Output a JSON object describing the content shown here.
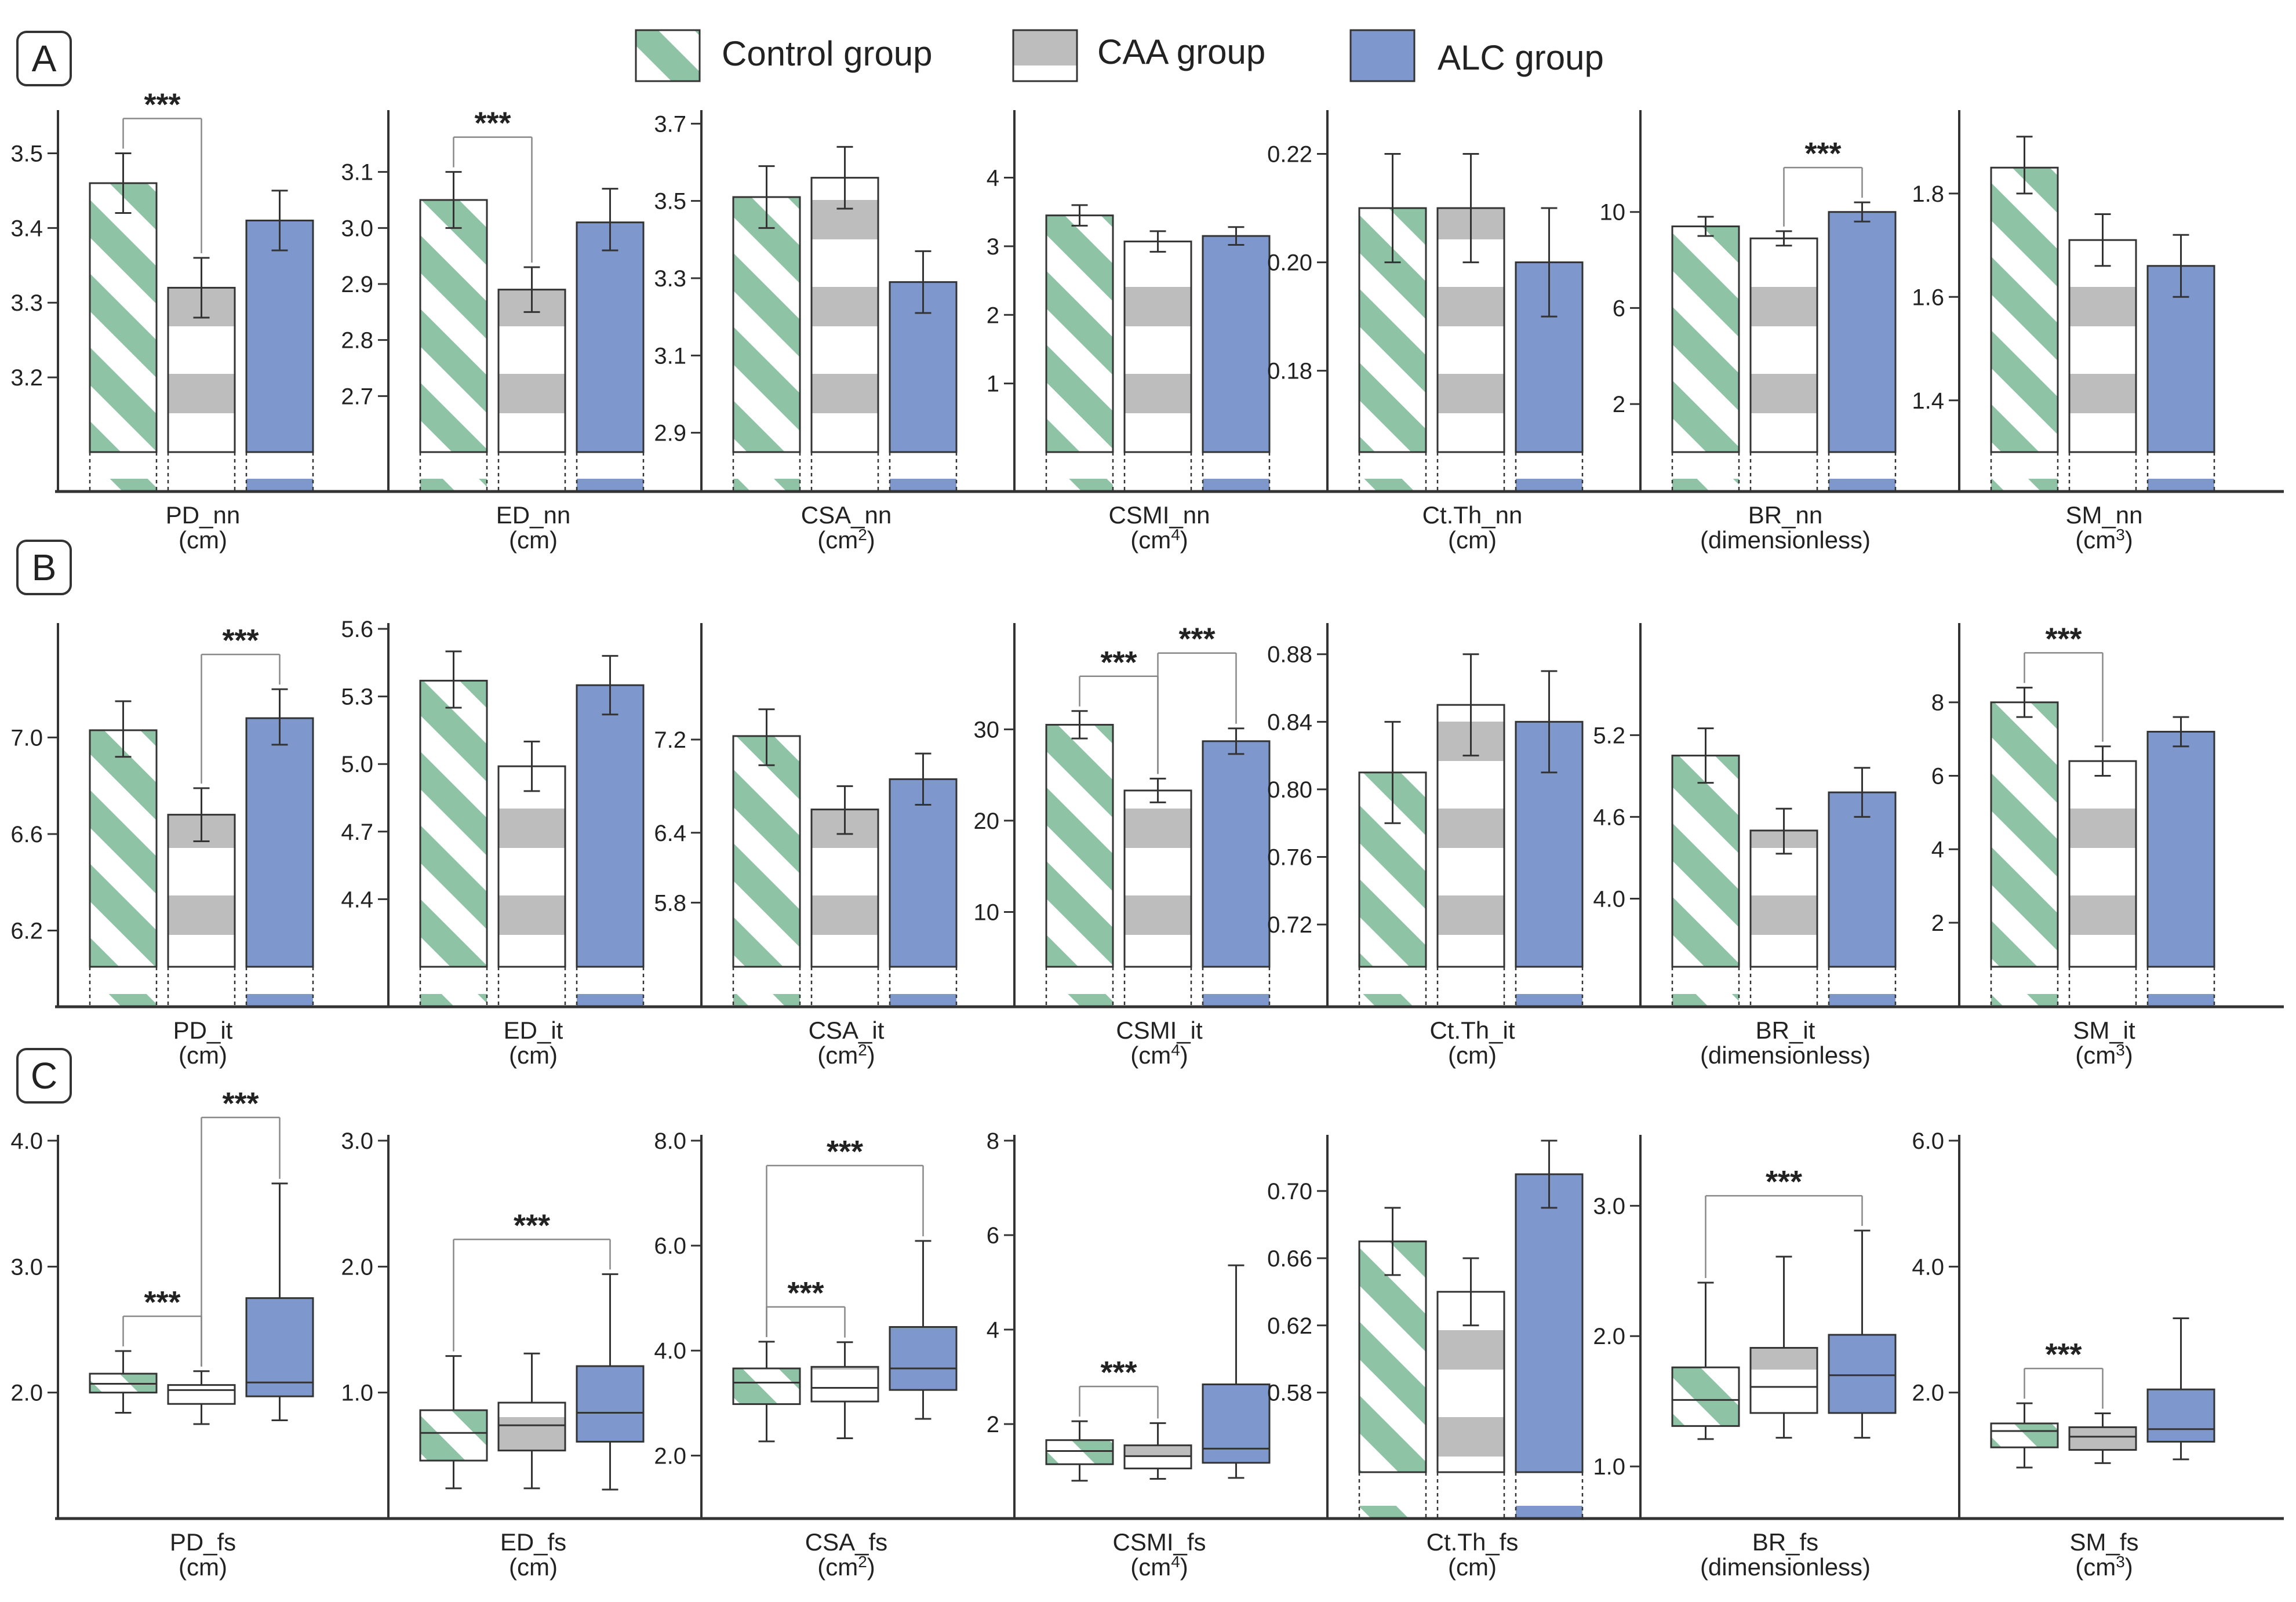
{
  "legend": {
    "items": [
      {
        "key": "control",
        "label": "Control group"
      },
      {
        "key": "caa",
        "label": "CAA group"
      },
      {
        "key": "alc",
        "label": "ALC group"
      }
    ]
  },
  "colors": {
    "control_stripe": "#8fc3a6",
    "caa_band": "#bdbdbd",
    "alc_fill": "#7e98cd",
    "axis": "#333333",
    "error": "#333333"
  },
  "panel_labels": [
    "A",
    "B",
    "C"
  ],
  "significance_marker": "***",
  "chart_data": [
    {
      "panel": "A",
      "type": "bar",
      "xlabel": "PD_nn",
      "unit": "(cm)",
      "ylim": [
        3.1,
        3.55
      ],
      "yticks": [
        "3.2",
        "3.3",
        "3.4",
        "3.5"
      ],
      "ytick_values": [
        3.2,
        3.3,
        3.4,
        3.5
      ],
      "groups": [
        "Control group",
        "CAA group",
        "ALC group"
      ],
      "values": [
        3.46,
        3.32,
        3.41
      ],
      "error_low": [
        3.42,
        3.28,
        3.37
      ],
      "error_high": [
        3.5,
        3.36,
        3.45
      ],
      "significance": [
        {
          "from": 0,
          "to": 1,
          "label": "***"
        }
      ]
    },
    {
      "panel": "A",
      "type": "bar",
      "xlabel": "ED_nn",
      "unit": "(cm)",
      "ylim": [
        2.6,
        3.2
      ],
      "yticks": [
        "2.7",
        "2.8",
        "2.9",
        "3.0",
        "3.1"
      ],
      "ytick_values": [
        2.7,
        2.8,
        2.9,
        3.0,
        3.1
      ],
      "groups": [
        "Control group",
        "CAA group",
        "ALC group"
      ],
      "values": [
        3.05,
        2.89,
        3.01
      ],
      "error_low": [
        3.0,
        2.85,
        2.96
      ],
      "error_high": [
        3.1,
        2.93,
        3.07
      ],
      "significance": [
        {
          "from": 0,
          "to": 1,
          "label": "***"
        }
      ]
    },
    {
      "panel": "A",
      "type": "bar",
      "xlabel": "CSA_nn",
      "unit": "(cm",
      "unit_sup": "2",
      "unit_end": ")",
      "ylim": [
        2.85,
        3.72
      ],
      "yticks": [
        "2.9",
        "3.1",
        "3.3",
        "3.5",
        "3.7"
      ],
      "ytick_values": [
        2.9,
        3.1,
        3.3,
        3.5,
        3.7
      ],
      "groups": [
        "Control group",
        "CAA group",
        "ALC group"
      ],
      "values": [
        3.51,
        3.56,
        3.29
      ],
      "error_low": [
        3.43,
        3.48,
        3.21
      ],
      "error_high": [
        3.59,
        3.64,
        3.37
      ],
      "significance": []
    },
    {
      "panel": "A",
      "type": "bar",
      "xlabel": "CSMI_nn",
      "unit": "(cm",
      "unit_sup": "4",
      "unit_end": ")",
      "ylim": [
        0,
        4.9
      ],
      "yticks": [
        "1",
        "2",
        "3",
        "4"
      ],
      "ytick_values": [
        1,
        2,
        3,
        4
      ],
      "groups": [
        "Control group",
        "CAA group",
        "ALC group"
      ],
      "values": [
        3.45,
        3.07,
        3.15
      ],
      "error_low": [
        3.3,
        2.92,
        3.02
      ],
      "error_high": [
        3.6,
        3.22,
        3.28
      ],
      "significance": []
    },
    {
      "panel": "A",
      "type": "bar",
      "xlabel": "Ct.Th_nn",
      "unit": "(cm)",
      "ylim": [
        0.165,
        0.227
      ],
      "yticks": [
        "0.18",
        "0.20",
        "0.22"
      ],
      "ytick_values": [
        0.18,
        0.2,
        0.22
      ],
      "groups": [
        "Control group",
        "CAA group",
        "ALC group"
      ],
      "values": [
        0.21,
        0.21,
        0.2
      ],
      "error_low": [
        0.2,
        0.2,
        0.19
      ],
      "error_high": [
        0.22,
        0.22,
        0.21
      ],
      "significance": []
    },
    {
      "panel": "A",
      "type": "bar",
      "xlabel": "BR_nn",
      "unit": "(dimensionless)",
      "ylim": [
        0,
        14
      ],
      "yticks": [
        "2",
        "6",
        "10"
      ],
      "ytick_values": [
        2,
        6,
        10
      ],
      "groups": [
        "Control group",
        "CAA group",
        "ALC group"
      ],
      "values": [
        9.4,
        8.9,
        10.0
      ],
      "error_low": [
        9.0,
        8.6,
        9.6
      ],
      "error_high": [
        9.8,
        9.2,
        10.4
      ],
      "significance": [
        {
          "from": 1,
          "to": 2,
          "label": "***"
        }
      ]
    },
    {
      "panel": "A",
      "type": "bar",
      "xlabel": "SM_nn",
      "unit": "(cm",
      "unit_sup": "3",
      "unit_end": ")",
      "ylim": [
        1.3,
        1.95
      ],
      "yticks": [
        "1.4",
        "1.6",
        "1.8"
      ],
      "ytick_values": [
        1.4,
        1.6,
        1.8
      ],
      "groups": [
        "Control group",
        "CAA group",
        "ALC group"
      ],
      "values": [
        1.85,
        1.71,
        1.66
      ],
      "error_low": [
        1.8,
        1.66,
        1.6
      ],
      "error_high": [
        1.91,
        1.76,
        1.72
      ],
      "significance": []
    },
    {
      "panel": "B",
      "type": "bar",
      "xlabel": "PD_it",
      "unit": "(cm)",
      "ylim": [
        6.05,
        7.45
      ],
      "yticks": [
        "6.2",
        "6.6",
        "7.0"
      ],
      "ytick_values": [
        6.2,
        6.6,
        7.0
      ],
      "groups": [
        "Control group",
        "CAA group",
        "ALC group"
      ],
      "values": [
        7.03,
        6.68,
        7.08
      ],
      "error_low": [
        6.92,
        6.57,
        6.97
      ],
      "error_high": [
        7.15,
        6.79,
        7.2
      ],
      "significance": [
        {
          "from": 1,
          "to": 2,
          "label": "***"
        }
      ]
    },
    {
      "panel": "B",
      "type": "bar",
      "xlabel": "ED_it",
      "unit": "(cm)",
      "ylim": [
        4.1,
        5.6
      ],
      "yticks": [
        "4.4",
        "4.7",
        "5.0",
        "5.3",
        "5.6"
      ],
      "ytick_values": [
        4.4,
        4.7,
        5.0,
        5.3,
        5.6
      ],
      "groups": [
        "Control group",
        "CAA group",
        "ALC group"
      ],
      "values": [
        5.37,
        4.99,
        5.35
      ],
      "error_low": [
        5.25,
        4.88,
        5.22
      ],
      "error_high": [
        5.5,
        5.1,
        5.48
      ],
      "significance": []
    },
    {
      "panel": "B",
      "type": "bar",
      "xlabel": "CSA_it",
      "unit": "(cm",
      "unit_sup": "2",
      "unit_end": ")",
      "ylim": [
        5.25,
        8.15
      ],
      "yticks": [
        "5.8",
        "6.4",
        "7.2"
      ],
      "ytick_values": [
        5.8,
        6.4,
        7.2
      ],
      "groups": [
        "Control group",
        "CAA group",
        "ALC group"
      ],
      "values": [
        7.23,
        6.6,
        6.86
      ],
      "error_low": [
        6.98,
        6.39,
        6.64
      ],
      "error_high": [
        7.46,
        6.8,
        7.08
      ],
      "significance": []
    },
    {
      "panel": "B",
      "type": "bar",
      "xlabel": "CSMI_it",
      "unit": "(cm",
      "unit_sup": "4",
      "unit_end": ")",
      "ylim": [
        4,
        41
      ],
      "yticks": [
        "10",
        "20",
        "30"
      ],
      "ytick_values": [
        10,
        20,
        30
      ],
      "groups": [
        "Control group",
        "CAA group",
        "ALC group"
      ],
      "values": [
        30.5,
        23.3,
        28.7
      ],
      "error_low": [
        29.0,
        22.0,
        27.3
      ],
      "error_high": [
        32.0,
        24.6,
        30.1
      ],
      "significance": [
        {
          "from": 0,
          "to": 1,
          "label": "***"
        },
        {
          "from": 1,
          "to": 2,
          "label": "***"
        }
      ]
    },
    {
      "panel": "B",
      "type": "bar",
      "xlabel": "Ct.Th_it",
      "unit": "(cm)",
      "ylim": [
        0.695,
        0.895
      ],
      "yticks": [
        "0.72",
        "0.76",
        "0.80",
        "0.84",
        "0.88"
      ],
      "ytick_values": [
        0.72,
        0.76,
        0.8,
        0.84,
        0.88
      ],
      "groups": [
        "Control group",
        "CAA group",
        "ALC group"
      ],
      "values": [
        0.81,
        0.85,
        0.84
      ],
      "error_low": [
        0.78,
        0.82,
        0.81
      ],
      "error_high": [
        0.84,
        0.88,
        0.87
      ],
      "significance": []
    },
    {
      "panel": "B",
      "type": "bar",
      "xlabel": "BR_it",
      "unit": "(dimensionless)",
      "ylim": [
        3.5,
        5.98
      ],
      "yticks": [
        "4.0",
        "4.6",
        "5.2"
      ],
      "ytick_values": [
        4.0,
        4.6,
        5.2
      ],
      "groups": [
        "Control group",
        "CAA group",
        "ALC group"
      ],
      "values": [
        5.05,
        4.5,
        4.78
      ],
      "error_low": [
        4.85,
        4.33,
        4.6
      ],
      "error_high": [
        5.25,
        4.66,
        4.96
      ],
      "significance": []
    },
    {
      "panel": "B",
      "type": "bar",
      "xlabel": "SM_it",
      "unit": "(cm",
      "unit_sup": "3",
      "unit_end": ")",
      "ylim": [
        0.8,
        10
      ],
      "yticks": [
        "2",
        "4",
        "6",
        "8"
      ],
      "ytick_values": [
        2,
        4,
        6,
        8
      ],
      "groups": [
        "Control group",
        "CAA group",
        "ALC group"
      ],
      "values": [
        8.0,
        6.4,
        7.2
      ],
      "error_low": [
        7.6,
        6.0,
        6.8
      ],
      "error_high": [
        8.4,
        6.8,
        7.6
      ],
      "significance": [
        {
          "from": 0,
          "to": 1,
          "label": "***"
        }
      ]
    },
    {
      "panel": "C",
      "type": "box",
      "xlabel": "PD_fs",
      "unit": "(cm)",
      "ylim": [
        1.0,
        4.0
      ],
      "yticks": [
        "2.0",
        "3.0",
        "4.0"
      ],
      "ytick_values": [
        2.0,
        3.0,
        4.0
      ],
      "groups": [
        "Control group",
        "CAA group",
        "ALC group"
      ],
      "whisker_low": [
        1.84,
        1.75,
        1.78
      ],
      "q1": [
        2.0,
        1.91,
        1.97
      ],
      "median": [
        2.07,
        2.02,
        2.08
      ],
      "q3": [
        2.15,
        2.06,
        2.75
      ],
      "whisker_high": [
        2.33,
        2.17,
        3.66
      ],
      "significance": [
        {
          "from": 0,
          "to": 1,
          "label": "***"
        },
        {
          "from": 1,
          "to": 2,
          "label": "***"
        }
      ]
    },
    {
      "panel": "C",
      "type": "box",
      "xlabel": "ED_fs",
      "unit": "(cm)",
      "ylim": [
        0,
        3.0
      ],
      "yticks": [
        "1.0",
        "2.0",
        "3.0"
      ],
      "ytick_values": [
        1.0,
        2.0,
        3.0
      ],
      "groups": [
        "Control group",
        "CAA group",
        "ALC group"
      ],
      "whisker_low": [
        0.24,
        0.24,
        0.23
      ],
      "q1": [
        0.46,
        0.54,
        0.61
      ],
      "median": [
        0.68,
        0.74,
        0.84
      ],
      "q3": [
        0.86,
        0.92,
        1.21
      ],
      "whisker_high": [
        1.29,
        1.31,
        1.94
      ],
      "significance": [
        {
          "from": 0,
          "to": 2,
          "label": "***"
        }
      ]
    },
    {
      "panel": "C",
      "type": "box",
      "xlabel": "CSA_fs",
      "unit": "(cm",
      "unit_sup": "2",
      "unit_end": ")",
      "ylim": [
        0.8,
        8.0
      ],
      "yticks": [
        "2.0",
        "4.0",
        "6.0",
        "8.0"
      ],
      "ytick_values": [
        2.0,
        4.0,
        6.0,
        8.0
      ],
      "groups": [
        "Control group",
        "CAA group",
        "ALC group"
      ],
      "whisker_low": [
        2.27,
        2.33,
        2.7
      ],
      "q1": [
        2.98,
        3.03,
        3.25
      ],
      "median": [
        3.39,
        3.29,
        3.66
      ],
      "q3": [
        3.66,
        3.69,
        4.45
      ],
      "whisker_high": [
        4.17,
        4.16,
        6.09
      ],
      "significance": [
        {
          "from": 0,
          "to": 1,
          "label": "***"
        },
        {
          "from": 0,
          "to": 2,
          "label": "***"
        }
      ]
    },
    {
      "panel": "C",
      "type": "box",
      "xlabel": "CSMI_fs",
      "unit": "(cm",
      "unit_sup": "4",
      "unit_end": ")",
      "ylim": [
        0,
        8
      ],
      "yticks": [
        "2",
        "4",
        "6",
        "8"
      ],
      "ytick_values": [
        2,
        4,
        6,
        8
      ],
      "groups": [
        "Control group",
        "CAA group",
        "ALC group"
      ],
      "whisker_low": [
        0.8,
        0.84,
        0.86
      ],
      "q1": [
        1.15,
        1.06,
        1.18
      ],
      "median": [
        1.43,
        1.32,
        1.48
      ],
      "q3": [
        1.66,
        1.55,
        2.84
      ],
      "whisker_high": [
        2.06,
        2.02,
        5.36
      ],
      "significance": [
        {
          "from": 0,
          "to": 1,
          "label": "***"
        }
      ]
    },
    {
      "panel": "C",
      "type": "bar",
      "xlabel": "Ct.Th_fs",
      "unit": "(cm)",
      "ylim": [
        0.505,
        0.73
      ],
      "yticks": [
        "0.58",
        "0.62",
        "0.66",
        "0.70"
      ],
      "ytick_values": [
        0.58,
        0.62,
        0.66,
        0.7
      ],
      "groups": [
        "Control group",
        "CAA group",
        "ALC group"
      ],
      "values": [
        0.67,
        0.64,
        0.71
      ],
      "error_low": [
        0.65,
        0.62,
        0.69
      ],
      "error_high": [
        0.69,
        0.66,
        0.73
      ],
      "significance": []
    },
    {
      "panel": "C",
      "type": "box",
      "xlabel": "BR_fs",
      "unit": "(dimensionless)",
      "ylim": [
        0.6,
        3.5
      ],
      "yticks": [
        "1.0",
        "2.0",
        "3.0"
      ],
      "ytick_values": [
        1.0,
        2.0,
        3.0
      ],
      "groups": [
        "Control group",
        "CAA group",
        "ALC group"
      ],
      "whisker_low": [
        1.21,
        1.22,
        1.22
      ],
      "q1": [
        1.31,
        1.41,
        1.41
      ],
      "median": [
        1.51,
        1.61,
        1.7
      ],
      "q3": [
        1.76,
        1.91,
        2.01
      ],
      "whisker_high": [
        2.41,
        2.61,
        2.81
      ],
      "significance": [
        {
          "from": 0,
          "to": 2,
          "label": "***"
        }
      ]
    },
    {
      "panel": "C",
      "type": "box",
      "xlabel": "SM_fs",
      "unit": "(cm",
      "unit_sup": "3",
      "unit_end": ")",
      "ylim": [
        0,
        6.0
      ],
      "yticks": [
        "2.0",
        "4.0",
        "6.0"
      ],
      "ytick_values": [
        2.0,
        4.0,
        6.0
      ],
      "groups": [
        "Control group",
        "CAA group",
        "ALC group"
      ],
      "whisker_low": [
        0.81,
        0.88,
        0.94
      ],
      "q1": [
        1.13,
        1.09,
        1.22
      ],
      "median": [
        1.39,
        1.3,
        1.42
      ],
      "q3": [
        1.51,
        1.45,
        2.05
      ],
      "whisker_high": [
        1.83,
        1.67,
        3.18
      ],
      "significance": [
        {
          "from": 0,
          "to": 1,
          "label": "***"
        }
      ]
    }
  ]
}
